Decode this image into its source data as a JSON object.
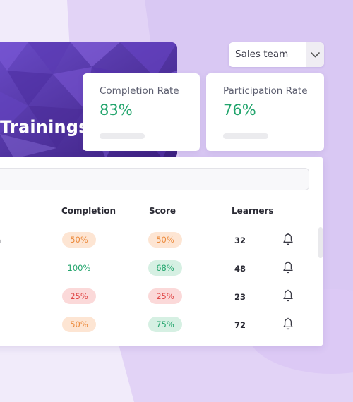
{
  "hero": {
    "title": "Trainings"
  },
  "team_select": {
    "value": "Sales team"
  },
  "stats": [
    {
      "label": "Completion Rate",
      "value": "83%"
    },
    {
      "label": "Participation Rate",
      "value": "76%"
    }
  ],
  "table": {
    "headers": {
      "completion": "Completion",
      "score": "Score",
      "learners": "Learners"
    },
    "rows": [
      {
        "name": "itch",
        "completion": "50%",
        "completion_status": "orange",
        "score": "50%",
        "score_status": "orange",
        "learners": "32"
      },
      {
        "name": "",
        "completion": "100%",
        "completion_status": "plain",
        "score": "68%",
        "score_status": "green",
        "learners": "48"
      },
      {
        "name": "",
        "completion": "25%",
        "completion_status": "red",
        "score": "25%",
        "score_status": "red",
        "learners": "23"
      },
      {
        "name": "",
        "completion": "50%",
        "completion_status": "orange",
        "score": "75%",
        "score_status": "green",
        "learners": "72"
      }
    ]
  },
  "colors": {
    "accent_green": "#23a56d",
    "badge_orange_bg": "#fde5d3",
    "badge_orange_text": "#ec8a3c",
    "badge_green_bg": "#d6f0e3",
    "badge_green_text": "#23a56d",
    "badge_red_bg": "#fbd9d9",
    "badge_red_text": "#e04848"
  },
  "icons": {
    "select_arrow": "chevron-down-icon",
    "row_action": "bell-icon"
  }
}
